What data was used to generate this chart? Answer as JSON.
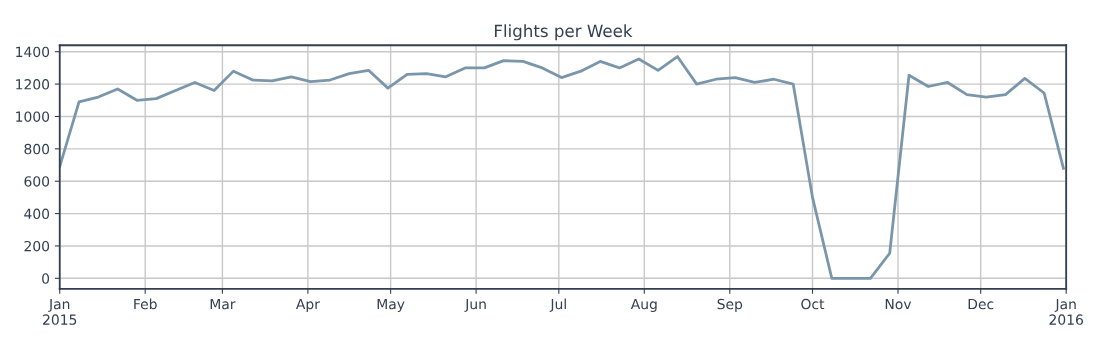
{
  "chart_data": {
    "type": "line",
    "title": "Flights per Week",
    "x": [
      "2015-01-01",
      "2015-01-08",
      "2015-01-15",
      "2015-01-22",
      "2015-01-29",
      "2015-02-05",
      "2015-02-12",
      "2015-02-19",
      "2015-02-26",
      "2015-03-05",
      "2015-03-12",
      "2015-03-19",
      "2015-03-26",
      "2015-04-02",
      "2015-04-09",
      "2015-04-16",
      "2015-04-23",
      "2015-04-30",
      "2015-05-07",
      "2015-05-14",
      "2015-05-21",
      "2015-05-28",
      "2015-06-04",
      "2015-06-11",
      "2015-06-18",
      "2015-06-25",
      "2015-07-02",
      "2015-07-09",
      "2015-07-16",
      "2015-07-23",
      "2015-07-30",
      "2015-08-06",
      "2015-08-13",
      "2015-08-20",
      "2015-08-27",
      "2015-09-03",
      "2015-09-10",
      "2015-09-17",
      "2015-09-24",
      "2015-10-01",
      "2015-10-08",
      "2015-10-15",
      "2015-10-22",
      "2015-10-29",
      "2015-11-05",
      "2015-11-12",
      "2015-11-19",
      "2015-11-26",
      "2015-12-03",
      "2015-12-10",
      "2015-12-17",
      "2015-12-24",
      "2015-12-31"
    ],
    "series": [
      {
        "color": "#7a96aa",
        "values": [
          690,
          1090,
          1120,
          1170,
          1100,
          1110,
          1160,
          1210,
          1160,
          1280,
          1225,
          1220,
          1245,
          1215,
          1225,
          1265,
          1285,
          1175,
          1260,
          1265,
          1245,
          1300,
          1300,
          1345,
          1340,
          1300,
          1240,
          1280,
          1340,
          1300,
          1355,
          1285,
          1370,
          1200,
          1230,
          1240,
          1210,
          1230,
          1200,
          500,
          0,
          0,
          0,
          155,
          1255,
          1185,
          1210,
          1135,
          1120,
          1135,
          1235,
          1145,
          680
        ]
      }
    ],
    "xlim": [
      "2015-01-01",
      "2016-01-01"
    ],
    "xticks": [
      {
        "value": "2015-01-01",
        "label": "Jan\n2015"
      },
      {
        "value": "2015-02-01",
        "label": "Feb"
      },
      {
        "value": "2015-03-01",
        "label": "Mar"
      },
      {
        "value": "2015-04-01",
        "label": "Apr"
      },
      {
        "value": "2015-05-01",
        "label": "May"
      },
      {
        "value": "2015-06-01",
        "label": "Jun"
      },
      {
        "value": "2015-07-01",
        "label": "Jul"
      },
      {
        "value": "2015-08-01",
        "label": "Aug"
      },
      {
        "value": "2015-09-01",
        "label": "Sep"
      },
      {
        "value": "2015-10-01",
        "label": "Oct"
      },
      {
        "value": "2015-11-01",
        "label": "Nov"
      },
      {
        "value": "2015-12-01",
        "label": "Dec"
      },
      {
        "value": "2016-01-01",
        "label": "Jan\n2016"
      }
    ],
    "ylim": [
      -65,
      1440
    ],
    "yticks": [
      0,
      200,
      400,
      600,
      800,
      1000,
      1200,
      1400
    ],
    "grid": true,
    "marker": "none",
    "line_style": "solid"
  }
}
